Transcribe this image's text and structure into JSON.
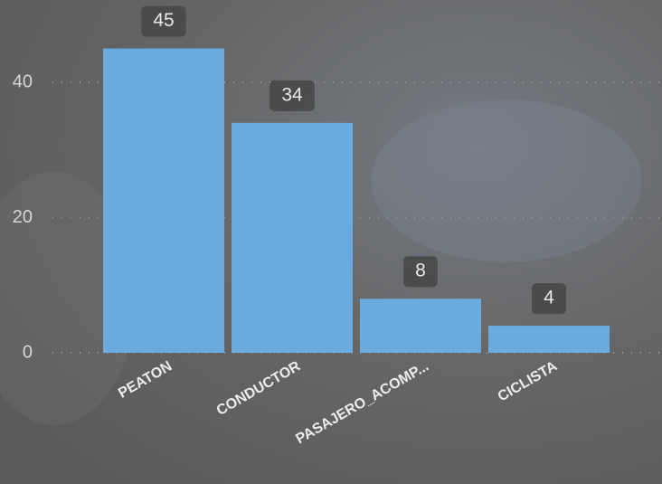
{
  "chart_data": {
    "type": "bar",
    "categories": [
      "PEATON",
      "CONDUCTOR",
      "PASAJERO_ACOMP...",
      "CICLISTA"
    ],
    "values": [
      45,
      34,
      8,
      4
    ],
    "color": "#6aace0",
    "ylim": [
      0,
      52
    ],
    "yticks": [
      0,
      20,
      40
    ],
    "grid": true
  }
}
